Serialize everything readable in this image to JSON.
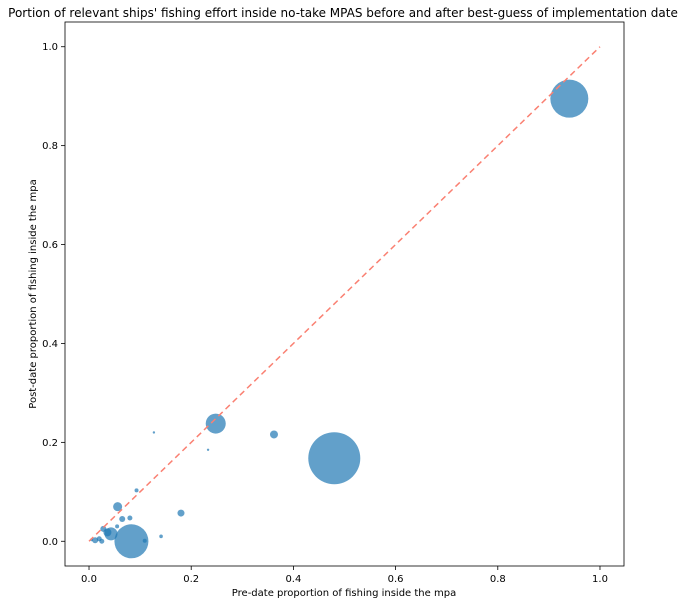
{
  "chart_data": {
    "type": "scatter",
    "title": "Portion of relevant ships' fishing effort inside no-take MPAS before and after best-guess of implementation date",
    "xlabel": "Pre-date proportion of fishing inside the mpa",
    "ylabel": "Post-date proportion of fishing inside the mpa",
    "xlim": [
      -0.047,
      1.047
    ],
    "ylim": [
      -0.05,
      1.05
    ],
    "xticks": [
      "0.0",
      "0.2",
      "0.4",
      "0.6",
      "0.8",
      "1.0"
    ],
    "yticks": [
      "0.0",
      "0.2",
      "0.4",
      "0.6",
      "0.8",
      "1.0"
    ],
    "grid": false,
    "marker_color": "#1f77b4",
    "marker_alpha": 0.7,
    "reference_line": {
      "type": "y=x",
      "from": 0.0,
      "to": 1.0,
      "color": "#fa8072",
      "style": "dashed"
    },
    "points": [
      {
        "x": 0.94,
        "y": 0.895,
        "r": 19
      },
      {
        "x": 0.48,
        "y": 0.168,
        "r": 26
      },
      {
        "x": 0.083,
        "y": 0.0,
        "r": 17
      },
      {
        "x": 0.248,
        "y": 0.238,
        "r": 10
      },
      {
        "x": 0.362,
        "y": 0.216,
        "r": 4
      },
      {
        "x": 0.056,
        "y": 0.07,
        "r": 4.5
      },
      {
        "x": 0.043,
        "y": 0.015,
        "r": 6.5
      },
      {
        "x": 0.036,
        "y": 0.018,
        "r": 4
      },
      {
        "x": 0.18,
        "y": 0.057,
        "r": 3.5
      },
      {
        "x": 0.065,
        "y": 0.045,
        "r": 3
      },
      {
        "x": 0.08,
        "y": 0.047,
        "r": 2.5
      },
      {
        "x": 0.093,
        "y": 0.103,
        "r": 2
      },
      {
        "x": 0.028,
        "y": 0.025,
        "r": 3
      },
      {
        "x": 0.012,
        "y": 0.002,
        "r": 3
      },
      {
        "x": 0.02,
        "y": 0.005,
        "r": 2.5
      },
      {
        "x": 0.025,
        "y": 0.0,
        "r": 2.5
      },
      {
        "x": 0.055,
        "y": 0.03,
        "r": 2
      },
      {
        "x": 0.109,
        "y": 0.001,
        "r": 2
      },
      {
        "x": 0.141,
        "y": 0.01,
        "r": 1.8
      },
      {
        "x": 0.127,
        "y": 0.22,
        "r": 1.2
      },
      {
        "x": 0.233,
        "y": 0.185,
        "r": 1.2
      },
      {
        "x": 0.005,
        "y": 0.003,
        "r": 1.5
      }
    ]
  }
}
